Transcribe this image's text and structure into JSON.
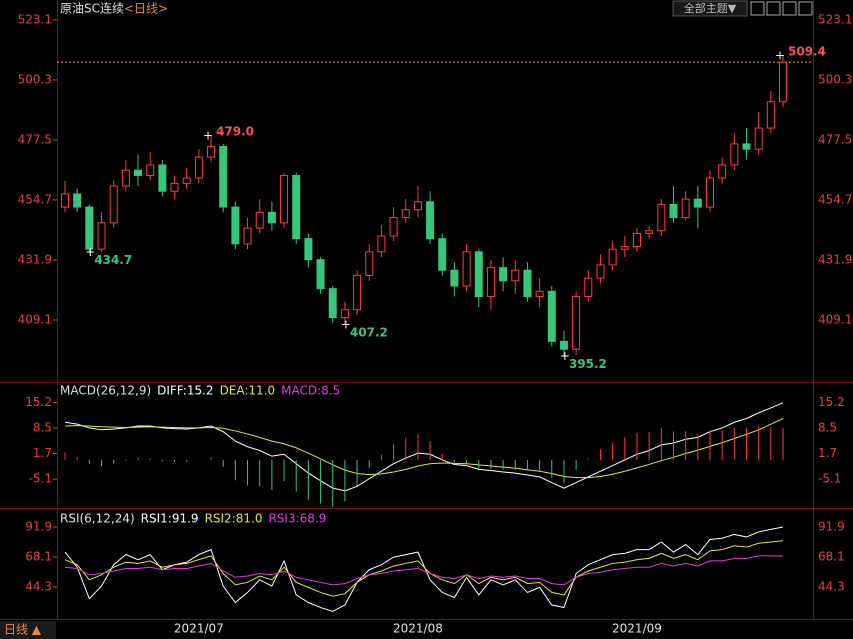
{
  "header": {
    "title": "原油SC连续",
    "period": "<日线>",
    "theme_button": "全部主题▼",
    "footer_period": "日线 ▲"
  },
  "chart_data": [
    {
      "type": "candlestick",
      "categories": [
        null,
        null,
        null,
        null,
        null,
        null,
        null,
        null,
        null,
        null,
        null,
        "2021/07",
        null,
        null,
        null,
        null,
        null,
        null,
        null,
        null,
        null,
        null,
        null,
        null,
        null,
        null,
        null,
        null,
        null,
        "2021/08",
        null,
        null,
        null,
        null,
        null,
        null,
        null,
        null,
        null,
        null,
        null,
        null,
        null,
        null,
        null,
        null,
        null,
        "2021/09",
        null,
        null,
        null,
        null,
        null,
        null,
        null,
        null,
        null,
        null,
        null,
        null
      ],
      "open": [
        452,
        457,
        452,
        436,
        446,
        460,
        466,
        464,
        468,
        458,
        461,
        463,
        471,
        475,
        452,
        438,
        444,
        450,
        446,
        464,
        440,
        432,
        421,
        410,
        413,
        426,
        435,
        441,
        448,
        451,
        454,
        440,
        428,
        422,
        435,
        418,
        429,
        424,
        428,
        418,
        420,
        401,
        398,
        418,
        425,
        430,
        436,
        437,
        442,
        443,
        453,
        448,
        455,
        452,
        463,
        468,
        476,
        474,
        482,
        492
      ],
      "high": [
        462,
        459,
        453,
        450,
        462,
        470,
        472,
        473,
        470,
        464,
        467,
        474,
        479,
        476,
        454,
        448,
        455,
        454,
        465,
        465,
        442,
        433,
        422,
        416,
        428,
        438,
        445,
        452,
        455,
        460,
        458,
        442,
        431,
        438,
        436,
        432,
        433,
        432,
        431,
        425,
        422,
        405,
        420,
        428,
        434,
        439,
        441,
        444,
        445,
        455,
        460,
        458,
        460,
        466,
        471,
        480,
        482,
        488,
        496,
        509.4
      ],
      "low": [
        450,
        450,
        434.7,
        435,
        444,
        458,
        460,
        462,
        456,
        455,
        459,
        461,
        469,
        450,
        436,
        436,
        442,
        443,
        444,
        438,
        429,
        419,
        408,
        407.2,
        411,
        424,
        433,
        439,
        446,
        448,
        438,
        426,
        418,
        420,
        414,
        413,
        420,
        419,
        416,
        414,
        399,
        395.2,
        396,
        416,
        423,
        428,
        433,
        435,
        440,
        441,
        446,
        447,
        444,
        450,
        461,
        466,
        470,
        472,
        480,
        490
      ],
      "close": [
        457,
        452,
        436,
        446,
        460,
        466,
        464,
        468,
        458,
        461,
        463,
        471,
        475,
        452,
        438,
        444,
        450,
        446,
        464,
        440,
        432,
        421,
        410,
        413,
        426,
        435,
        441,
        448,
        451,
        454,
        440,
        428,
        422,
        435,
        418,
        429,
        424,
        428,
        418,
        420,
        401,
        398,
        418,
        425,
        430,
        436,
        437,
        442,
        443,
        453,
        448,
        455,
        452,
        463,
        468,
        476,
        474,
        482,
        492,
        507
      ],
      "high_labels": [
        null,
        null,
        null,
        null,
        null,
        null,
        null,
        null,
        null,
        null,
        null,
        null,
        "479.0",
        null,
        null,
        null,
        null,
        null,
        null,
        null,
        null,
        null,
        null,
        null,
        null,
        null,
        null,
        null,
        null,
        null,
        null,
        null,
        null,
        null,
        null,
        null,
        null,
        null,
        null,
        null,
        null,
        null,
        null,
        null,
        null,
        null,
        null,
        null,
        null,
        null,
        null,
        null,
        null,
        null,
        null,
        null,
        null,
        null,
        null,
        "509.4"
      ],
      "low_labels": [
        null,
        null,
        "434.7",
        null,
        null,
        null,
        null,
        null,
        null,
        null,
        null,
        null,
        null,
        null,
        null,
        null,
        null,
        null,
        null,
        null,
        null,
        null,
        null,
        "407.2",
        null,
        null,
        null,
        null,
        null,
        null,
        null,
        null,
        null,
        null,
        null,
        null,
        null,
        null,
        null,
        null,
        null,
        "395.2",
        null,
        null,
        null,
        null,
        null,
        null,
        null,
        null,
        null,
        null,
        null,
        null,
        null,
        null,
        null,
        null,
        null,
        null
      ],
      "up_color": "#ff3b3b",
      "down_color": "#36c77a",
      "last_line_color": "#e8873a",
      "ylim": [
        386.3,
        526.1
      ],
      "yticks": [
        523.1,
        500.3,
        477.5,
        454.7,
        431.9,
        409.1
      ]
    },
    {
      "type": "macd",
      "title": "MACD(26,12,9)",
      "series": [
        {
          "name": "DIFF:15.2",
          "color": "#ffffff",
          "values": [
            10,
            9.5,
            8.5,
            8,
            8.2,
            8.5,
            9,
            9,
            8.5,
            8.3,
            8.2,
            8.5,
            9,
            7.5,
            5,
            3.5,
            2.5,
            1,
            1.5,
            -1,
            -3.5,
            -5.5,
            -7.5,
            -8.2,
            -7,
            -5,
            -3,
            -1,
            0.5,
            1.8,
            1.5,
            0,
            -1.2,
            -1.5,
            -2.5,
            -2.8,
            -3.2,
            -3.5,
            -4,
            -4.5,
            -6,
            -7.5,
            -6,
            -4.5,
            -3,
            -1.5,
            0,
            1.5,
            2.5,
            4,
            4.5,
            5.5,
            6,
            7.5,
            8.5,
            10,
            11,
            12.5,
            13.8,
            15.2
          ]
        },
        {
          "name": "DEA:11.0",
          "color": "#e6e62e",
          "values": [
            9,
            9.1,
            9,
            8.8,
            8.7,
            8.6,
            8.7,
            8.8,
            8.7,
            8.6,
            8.5,
            8.5,
            8.6,
            8.4,
            7.7,
            6.9,
            6,
            5,
            4.3,
            3.2,
            1.8,
            0.3,
            -1.3,
            -2.7,
            -3.6,
            -3.9,
            -3.7,
            -3.2,
            -2.5,
            -1.6,
            -1,
            -0.8,
            -0.9,
            -1,
            -1.3,
            -1.6,
            -1.9,
            -2.2,
            -2.6,
            -3,
            -3.6,
            -4.4,
            -4.7,
            -4.7,
            -4.4,
            -3.8,
            -3,
            -2.1,
            -1.2,
            -0.2,
            0.7,
            1.7,
            2.6,
            3.6,
            4.6,
            5.7,
            6.8,
            8,
            9.5,
            11.0
          ]
        },
        {
          "name": "MACD:8.5",
          "color": "#e03ce0",
          "bar": true,
          "values": [
            2,
            0.8,
            -1,
            -1.6,
            -1,
            -0.2,
            0.6,
            0.4,
            -0.4,
            -0.6,
            -0.6,
            0,
            0.8,
            -1.8,
            -5.4,
            -6.8,
            -7,
            -8,
            -5.6,
            -8.4,
            -10.6,
            -11.6,
            -12.4,
            -11,
            -6.8,
            -2.2,
            1.4,
            4.4,
            6,
            6.8,
            5,
            1.6,
            -0.6,
            -1,
            -2.4,
            -2.4,
            -2.6,
            -2.6,
            -2.8,
            -3,
            -4.8,
            -6.2,
            -2.6,
            0.4,
            2.8,
            4.6,
            6,
            7.2,
            7.4,
            8.4,
            7.6,
            7.6,
            6.8,
            7.8,
            7.8,
            8.6,
            8.4,
            9,
            8.6,
            8.5
          ]
        }
      ],
      "ylim": [
        -12.5,
        19.9
      ],
      "yticks": [
        15.2,
        8.5,
        1.7,
        -5.1
      ]
    },
    {
      "type": "rsi",
      "title": "RSI(6,12,24)",
      "series": [
        {
          "name": "RSI1:91.9",
          "color": "#ffffff",
          "values": [
            72,
            60,
            35,
            45,
            62,
            70,
            66,
            70,
            58,
            62,
            64,
            70,
            74,
            45,
            32,
            40,
            50,
            45,
            65,
            38,
            32,
            28,
            25,
            30,
            48,
            58,
            62,
            68,
            70,
            72,
            50,
            40,
            36,
            52,
            38,
            50,
            46,
            50,
            40,
            44,
            30,
            28,
            55,
            62,
            66,
            70,
            71,
            74,
            74,
            80,
            72,
            78,
            70,
            82,
            83,
            86,
            84,
            88,
            90,
            91.9
          ]
        },
        {
          "name": "RSI2:81.0",
          "color": "#e6e62e",
          "values": [
            66,
            62,
            50,
            54,
            60,
            64,
            63,
            65,
            60,
            62,
            63,
            66,
            69,
            55,
            46,
            48,
            53,
            50,
            60,
            48,
            44,
            40,
            37,
            39,
            48,
            54,
            57,
            61,
            63,
            65,
            55,
            50,
            47,
            54,
            47,
            52,
            50,
            52,
            47,
            48,
            40,
            38,
            52,
            57,
            60,
            63,
            64,
            66,
            67,
            71,
            67,
            70,
            66,
            73,
            74,
            77,
            76,
            79,
            80,
            81.0
          ]
        },
        {
          "name": "RSI3:68.9",
          "color": "#e03ce0",
          "values": [
            60,
            59,
            54,
            55,
            57,
            59,
            59,
            60,
            58,
            59,
            59,
            61,
            63,
            57,
            52,
            53,
            55,
            54,
            57,
            52,
            50,
            48,
            46,
            47,
            51,
            54,
            55,
            57,
            58,
            59,
            55,
            52,
            51,
            54,
            51,
            53,
            52,
            53,
            51,
            51,
            47,
            46,
            52,
            55,
            56,
            58,
            59,
            60,
            60,
            63,
            61,
            63,
            61,
            65,
            65,
            67,
            67,
            69,
            69,
            68.9
          ]
        }
      ],
      "ylim": [
        19.7,
        105.4
      ],
      "yticks": [
        91.9,
        68.1,
        44.3
      ]
    }
  ]
}
